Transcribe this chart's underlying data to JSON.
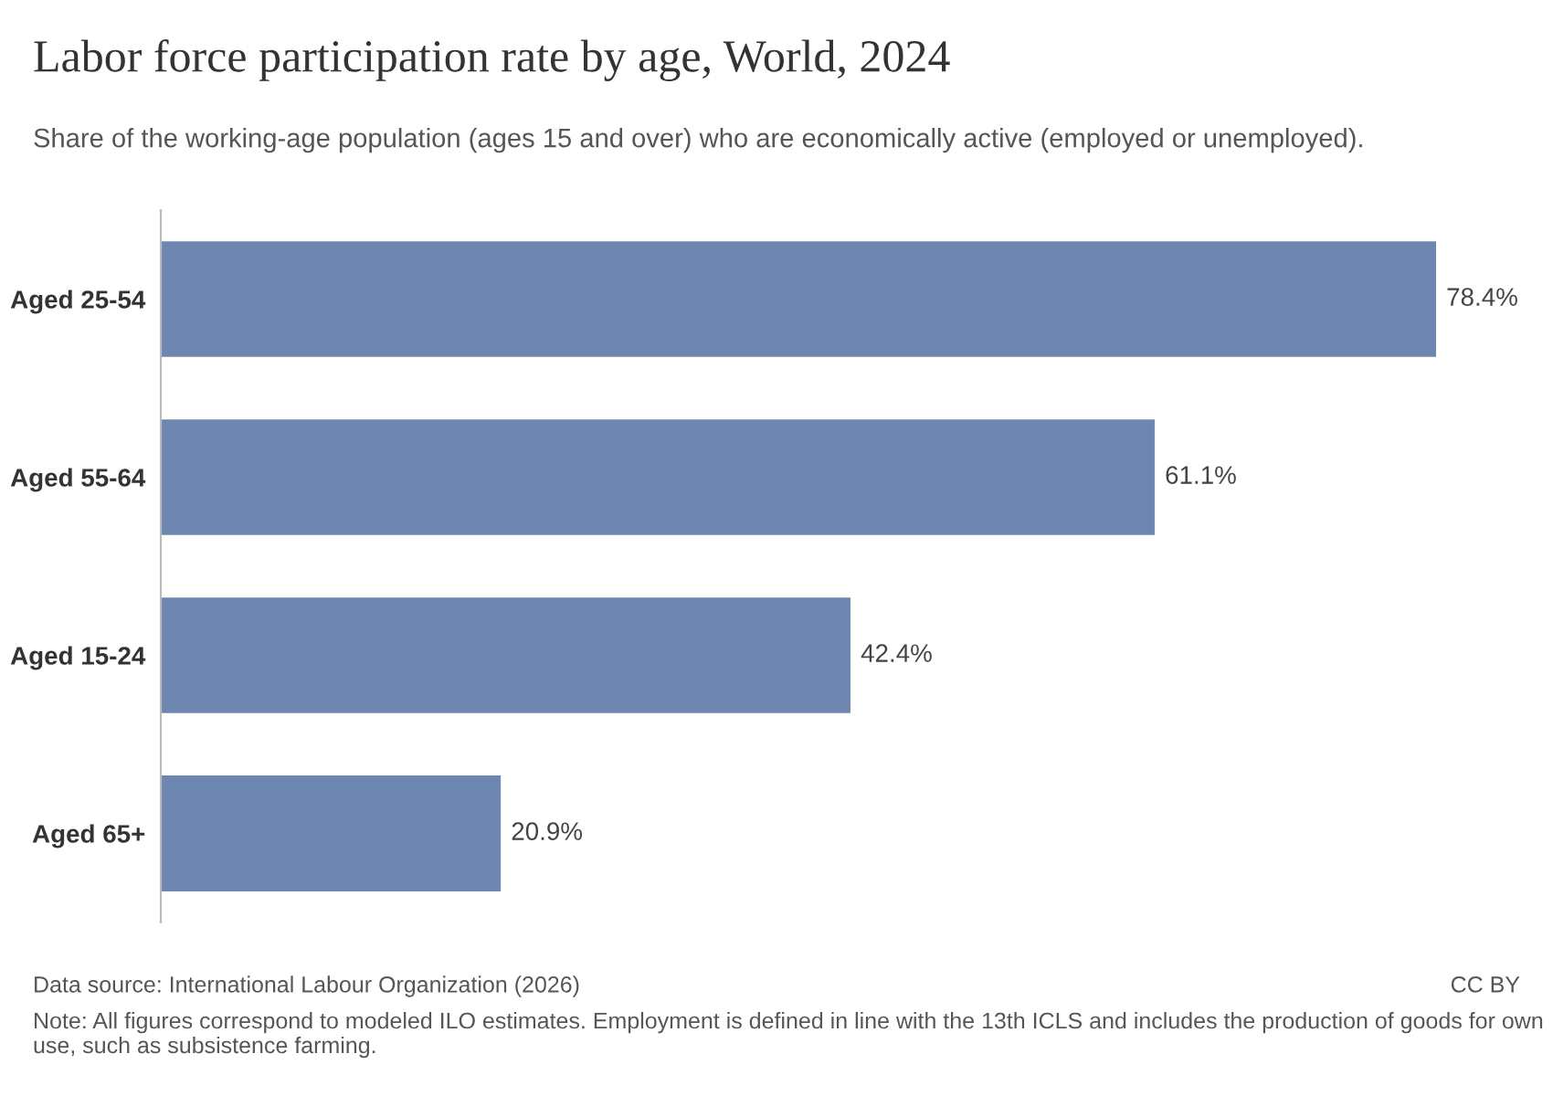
{
  "chart_data": {
    "type": "bar",
    "orientation": "horizontal",
    "title": "Labor force participation rate by age, World, 2024",
    "subtitle": "Share of the working-age population (ages 15 and over) who are economically active (employed or unemployed).",
    "categories": [
      "Aged 25-54",
      "Aged 55-64",
      "Aged 15-24",
      "Aged 65+"
    ],
    "values": [
      78.4,
      61.1,
      42.4,
      20.9
    ],
    "value_labels": [
      "78.4%",
      "61.1%",
      "42.4%",
      "20.9%"
    ],
    "color": "#6d87b0",
    "grid": false,
    "legend": false,
    "tick_labels": "y",
    "annotations": [
      "Data source: International Labour Organization (2026)",
      "CC BY",
      "Note: All figures correspond to modeled ILO estimates. Employment is defined in line with the 13th ICLS and includes the production of goods for own use, such as subsistence farming."
    ]
  }
}
